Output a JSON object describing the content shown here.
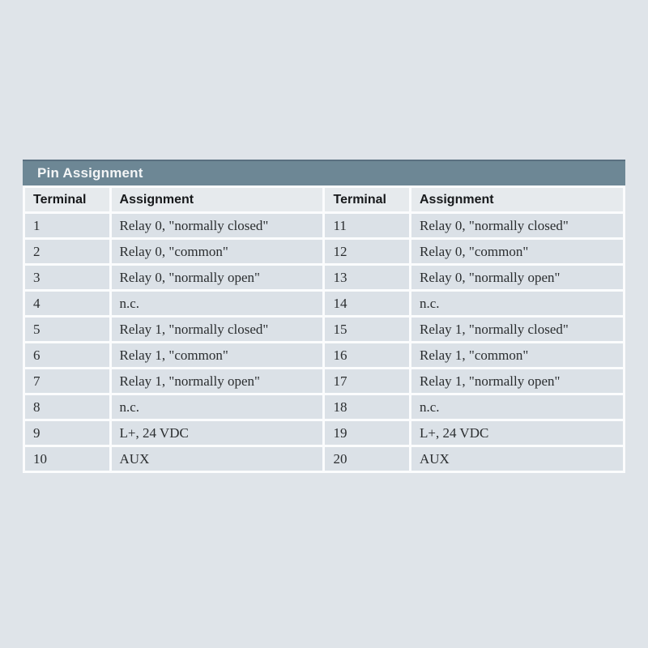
{
  "page": {
    "background": "#dfe4e9"
  },
  "colors": {
    "title_bar_bg": "#6d8795",
    "title_bar_edge": "#5a7080",
    "title_text": "#f3f5f6",
    "header_row_bg": "#e6eaed",
    "row_bg": "#dbe1e7",
    "gap": "#fbfcfd",
    "header_text": "#17191b",
    "body_text": "#2a2d2f"
  },
  "table": {
    "title": "Pin Assignment",
    "columns": [
      "Terminal",
      "Assignment",
      "Terminal",
      "Assignment"
    ],
    "rows": [
      [
        "1",
        "Relay 0, \"normally closed\"",
        "11",
        "Relay 0, \"normally closed\""
      ],
      [
        "2",
        "Relay 0, \"common\"",
        "12",
        "Relay 0, \"common\""
      ],
      [
        "3",
        "Relay 0, \"normally open\"",
        "13",
        "Relay 0, \"normally open\""
      ],
      [
        "4",
        "n.c.",
        "14",
        "n.c."
      ],
      [
        "5",
        "Relay 1, \"normally closed\"",
        "15",
        "Relay 1, \"normally closed\""
      ],
      [
        "6",
        "Relay 1, \"common\"",
        "16",
        "Relay 1, \"common\""
      ],
      [
        "7",
        "Relay 1, \"normally open\"",
        "17",
        "Relay 1, \"normally open\""
      ],
      [
        "8",
        "n.c.",
        "18",
        "n.c."
      ],
      [
        "9",
        "L+, 24 VDC",
        "19",
        "L+, 24 VDC"
      ],
      [
        "10",
        "AUX",
        "20",
        "AUX"
      ]
    ]
  }
}
